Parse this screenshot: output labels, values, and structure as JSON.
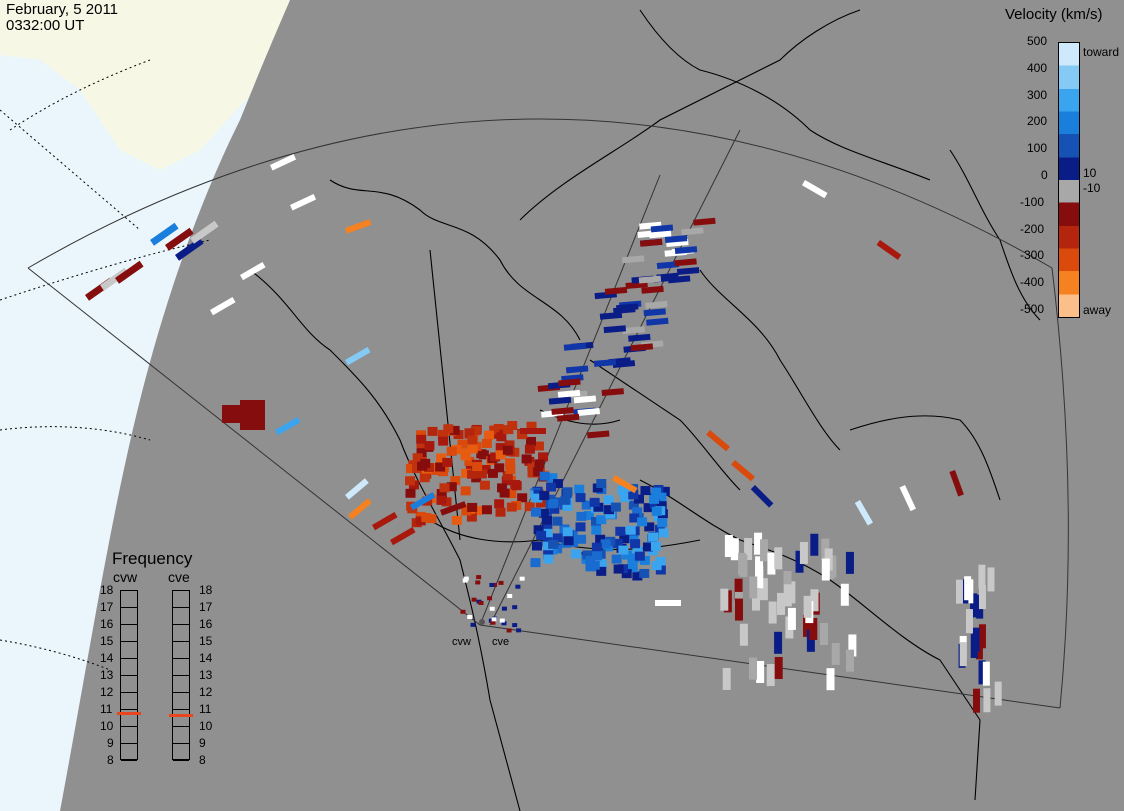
{
  "header": {
    "date": "February, 5 2011",
    "time": "0332:00 UT"
  },
  "colorbar": {
    "title": "Velocity (km/s)",
    "ticks": [
      "500",
      "400",
      "300",
      "200",
      "100",
      "0",
      "-100",
      "-200",
      "-300",
      "-400",
      "-500"
    ],
    "extra_ticks": [
      "10",
      "-10"
    ],
    "toward_label": "toward",
    "away_label": "away",
    "colors_top_to_bottom": [
      "#cde9fb",
      "#84caf5",
      "#3ba4ee",
      "#1a7fdc",
      "#1552b4",
      "#0a1d87",
      "#a8a8a8",
      "#860d0d",
      "#b3250c",
      "#d94a0c",
      "#f58120",
      "#fbbf8a"
    ]
  },
  "frequency_panel": {
    "title": "Frequency",
    "left_radar": "cvw",
    "right_radar": "cve",
    "scale": [
      "18",
      "17",
      "16",
      "15",
      "14",
      "13",
      "12",
      "11",
      "10",
      "9",
      "8"
    ],
    "left_marker_mhz": 10.8,
    "right_marker_mhz": 10.7,
    "marker_color": "#e8461e"
  },
  "radar_sites": [
    {
      "name": "cvw"
    },
    {
      "name": "cve"
    }
  ],
  "map": {
    "land_sea_color": "#909090",
    "daylight_ocean_color": "#eaf6fc",
    "daylight_land_color": "#f7f7e6"
  }
}
